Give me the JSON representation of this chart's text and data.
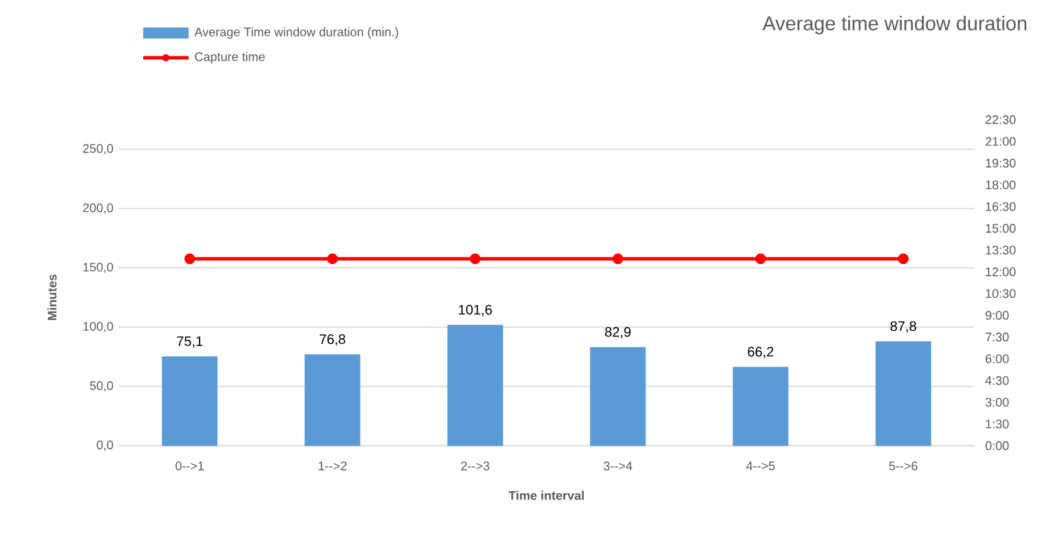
{
  "chart_data": {
    "type": "bar",
    "title": "Average time window duration",
    "xlabel": "Time interval",
    "ylabel": "Minutes",
    "categories": [
      "0-->1",
      "1-->2",
      "2-->3",
      "3-->4",
      "4-->5",
      "5-->6"
    ],
    "series": [
      {
        "name": "Average Time window duration (min.)",
        "color": "#5b9bd5",
        "values": [
          75.1,
          76.8,
          101.6,
          82.9,
          66.2,
          87.8
        ],
        "value_labels": [
          "75,1",
          "76,8",
          "101,6",
          "82,9",
          "66,2",
          "87,8"
        ]
      },
      {
        "name": "Capture time",
        "type": "line",
        "axis": "y2",
        "color": "#ff0000",
        "values": [
          12.9,
          12.9,
          12.9,
          12.9,
          12.9,
          12.9
        ]
      }
    ],
    "ylim": [
      0,
      250
    ],
    "yticks": [
      {
        "value": 0,
        "label": "0,0"
      },
      {
        "value": 50,
        "label": "50,0"
      },
      {
        "value": 100,
        "label": "100,0"
      },
      {
        "value": 150,
        "label": "150,0"
      },
      {
        "value": 200,
        "label": "200,0"
      },
      {
        "value": 250,
        "label": "250,0"
      }
    ],
    "y2lim": [
      0,
      22.5
    ],
    "y2ticks": [
      {
        "value": 0,
        "label": "0:00"
      },
      {
        "value": 1.5,
        "label": "1:30"
      },
      {
        "value": 3,
        "label": "3:00"
      },
      {
        "value": 4.5,
        "label": "4:30"
      },
      {
        "value": 6,
        "label": "6:00"
      },
      {
        "value": 7.5,
        "label": "7:30"
      },
      {
        "value": 9,
        "label": "9:00"
      },
      {
        "value": 10.5,
        "label": "10:30"
      },
      {
        "value": 12,
        "label": "12:00"
      },
      {
        "value": 13.5,
        "label": "13:30"
      },
      {
        "value": 15,
        "label": "15:00"
      },
      {
        "value": 16.5,
        "label": "16:30"
      },
      {
        "value": 18,
        "label": "18:00"
      },
      {
        "value": 19.5,
        "label": "19:30"
      },
      {
        "value": 21,
        "label": "21:00"
      },
      {
        "value": 22.5,
        "label": "22:30"
      }
    ],
    "grid": "y",
    "legend": "top left",
    "marker": "circle",
    "line_style": "solid"
  }
}
